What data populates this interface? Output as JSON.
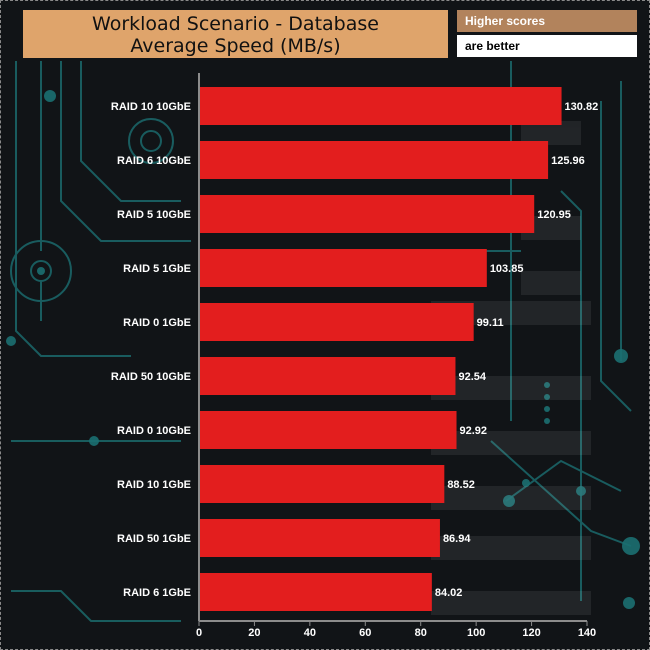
{
  "chart_data": {
    "type": "bar",
    "orientation": "horizontal",
    "title": "Workload Scenario - Database",
    "subtitle": "Average Speed (MB/s)",
    "note_line_1": "Higher scores",
    "note_line_2": "are better",
    "categories": [
      "RAID 10 10GbE",
      "RAID 6 10GbE",
      "RAID 5 10GbE",
      "RAID 5 1GbE",
      "RAID 0 1GbE",
      "RAID 50 10GbE",
      "RAID 0 10GbE",
      "RAID 10 1GbE",
      "RAID 50 1GbE",
      "RAID 6 1GbE"
    ],
    "values": [
      130.82,
      125.96,
      120.95,
      103.85,
      99.11,
      92.54,
      92.92,
      88.52,
      86.94,
      84.02
    ],
    "value_labels": [
      "130.82",
      "125.96",
      "120.95",
      "103.85",
      "99.11",
      "92.54",
      "92.92",
      "88.52",
      "86.94",
      "84.02"
    ],
    "xlim": [
      0,
      140
    ],
    "xticks": [
      "0",
      "20",
      "40",
      "60",
      "80",
      "100",
      "120",
      "140"
    ],
    "grid": false,
    "bar_color": "#e31e1e"
  },
  "colors": {
    "title_bg": "#dfa46b",
    "note_bg": "#b2835c",
    "background": "#111417",
    "circuit": "#1f7c7e"
  }
}
